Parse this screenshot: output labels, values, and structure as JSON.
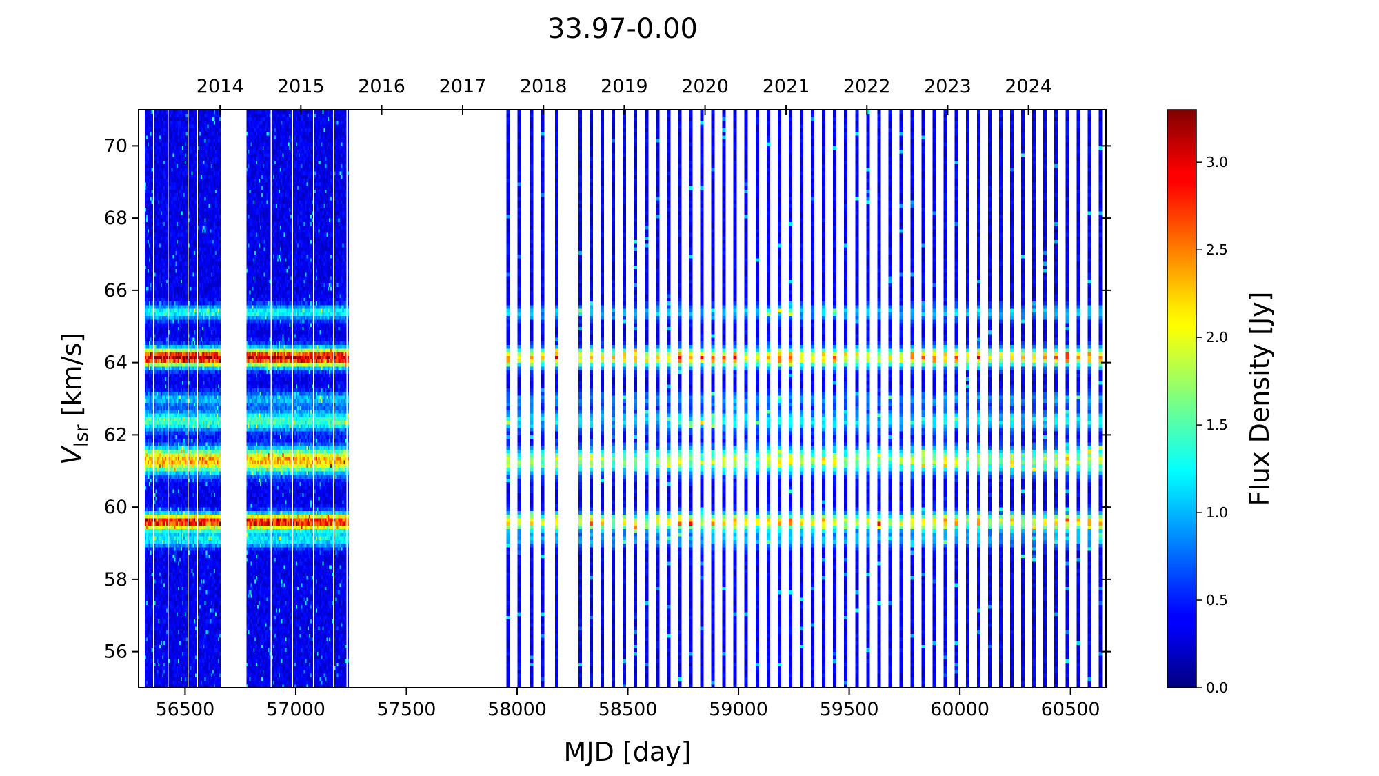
{
  "chart_data": {
    "type": "heatmap",
    "title": "33.97-0.00",
    "xlabel": "MJD [day]",
    "ylabel_main": "V",
    "ylabel_sub": "lsr",
    "ylabel_unit": " [km/s]",
    "colorbar_label": "Flux Density [Jy]",
    "colormap": "jet",
    "xlim": [
      56290,
      60660
    ],
    "ylim": [
      55,
      71
    ],
    "clim": [
      0,
      3.3
    ],
    "x_ticks": [
      56500,
      57000,
      57500,
      58000,
      58500,
      59000,
      59500,
      60000,
      60500
    ],
    "y_ticks": [
      56,
      58,
      60,
      62,
      64,
      66,
      68,
      70
    ],
    "top_axis_year_ticks": [
      {
        "label": "2014",
        "mjd": 56658
      },
      {
        "label": "2015",
        "mjd": 57023
      },
      {
        "label": "2016",
        "mjd": 57388
      },
      {
        "label": "2017",
        "mjd": 57754
      },
      {
        "label": "2018",
        "mjd": 58119
      },
      {
        "label": "2019",
        "mjd": 58484
      },
      {
        "label": "2020",
        "mjd": 58849
      },
      {
        "label": "2021",
        "mjd": 59215
      },
      {
        "label": "2022",
        "mjd": 59580
      },
      {
        "label": "2023",
        "mjd": 59945
      },
      {
        "label": "2024",
        "mjd": 60310
      }
    ],
    "colorbar_ticks": [
      {
        "label": "0.0",
        "value": 0.0
      },
      {
        "label": "0.5",
        "value": 0.5
      },
      {
        "label": "1.0",
        "value": 1.0
      },
      {
        "label": "1.5",
        "value": 1.5
      },
      {
        "label": "2.0",
        "value": 2.0
      },
      {
        "label": "2.5",
        "value": 2.5
      },
      {
        "label": "3.0",
        "value": 3.0
      }
    ],
    "observing_blocks": [
      {
        "start_mjd": 56318,
        "end_mjd": 56658
      },
      {
        "start_mjd": 56778,
        "end_mjd": 57238
      }
    ],
    "sparse_epochs_mjd": [
      57955,
      58005,
      58060,
      58110,
      58175,
      58280,
      58330,
      58380,
      58430,
      58480,
      58530,
      58580,
      58630,
      58680,
      58730,
      58780,
      58830,
      58880,
      58930,
      58980,
      59030,
      59080,
      59130,
      59180,
      59230,
      59280,
      59330,
      59380,
      59430,
      59480,
      59530,
      59580,
      59630,
      59680,
      59730,
      59780,
      59830,
      59880,
      59930,
      59980,
      60030,
      60080,
      60130,
      60180,
      60230,
      60280,
      60330,
      60380,
      60430,
      60480,
      60530,
      60580,
      60630
    ],
    "spectral_features": [
      {
        "velocity": 64.15,
        "peak_flux": 2.9,
        "width": 0.18
      },
      {
        "velocity": 61.3,
        "peak_flux": 2.1,
        "width": 0.25
      },
      {
        "velocity": 59.6,
        "peak_flux": 2.7,
        "width": 0.16
      },
      {
        "velocity": 62.4,
        "peak_flux": 1.2,
        "width": 0.2
      },
      {
        "velocity": 65.4,
        "peak_flux": 1.0,
        "width": 0.15
      },
      {
        "velocity": 59.1,
        "peak_flux": 0.9,
        "width": 0.15
      },
      {
        "velocity": 63.0,
        "peak_flux": 0.7,
        "width": 0.15
      }
    ]
  }
}
